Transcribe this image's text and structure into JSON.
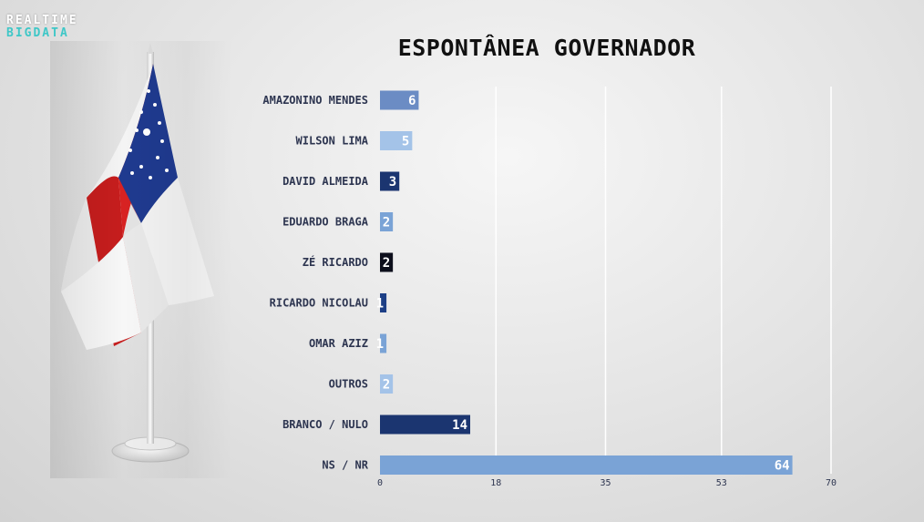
{
  "logo": {
    "line1": "REALTIME",
    "line2": "BIGDATA"
  },
  "chart_data": {
    "type": "bar",
    "orientation": "horizontal",
    "title": "ESPONTÂNEA GOVERNADOR",
    "categories": [
      "AMAZONINO MENDES",
      "WILSON LIMA",
      "DAVID ALMEIDA",
      "EDUARDO BRAGA",
      "ZÉ RICARDO",
      "RICARDO NICOLAU",
      "OMAR AZIZ",
      "OUTROS",
      "BRANCO / NULO",
      "NS / NR"
    ],
    "values": [
      6,
      5,
      3,
      2,
      2,
      1,
      1,
      2,
      14,
      64
    ],
    "colors": [
      "#6b8cc4",
      "#a4c3e8",
      "#1b3570",
      "#7aa3d6",
      "#0d0f1c",
      "#1d3f86",
      "#7aa3d6",
      "#a4c3e8",
      "#1b3570",
      "#7aa3d6"
    ],
    "xlim": [
      0,
      70
    ],
    "xticks": [
      0,
      18,
      35,
      53,
      70
    ],
    "grid": true,
    "legend": "none"
  }
}
